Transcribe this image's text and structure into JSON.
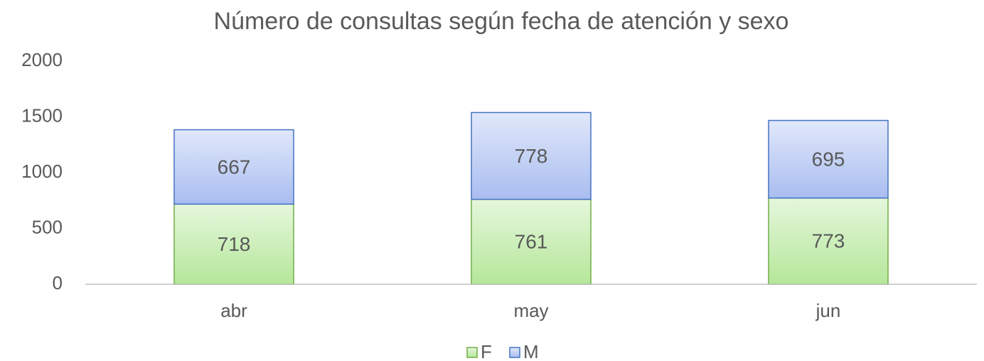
{
  "chart_data": {
    "type": "stacked_bar",
    "title": "Número de consultas según fecha de atención y sexo",
    "categories": [
      "abr",
      "may",
      "jun"
    ],
    "series": [
      {
        "name": "F",
        "color": "#b5e79a",
        "values": [
          718,
          761,
          773
        ]
      },
      {
        "name": "M",
        "color": "#a9bdf0",
        "values": [
          667,
          778,
          695
        ]
      }
    ],
    "ylim": [
      0,
      2000
    ],
    "yticks": [
      0,
      500,
      1000,
      1500,
      2000
    ],
    "grid": false,
    "legend": "bottom"
  }
}
